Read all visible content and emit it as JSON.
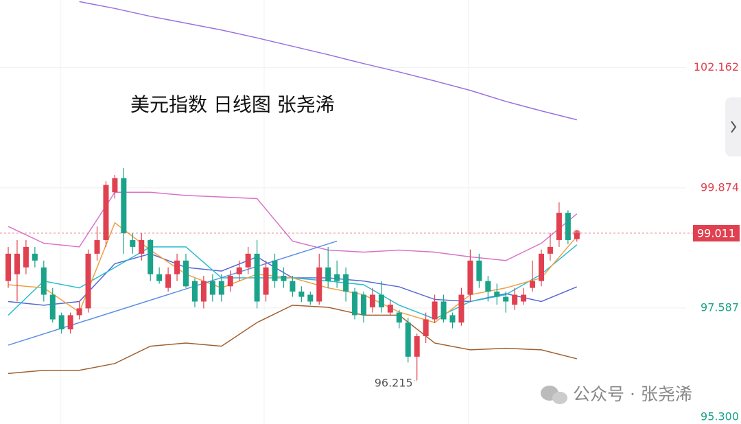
{
  "chart_data": {
    "type": "candlestick",
    "title": "美元指数 日线图  张尧浠",
    "watermark": "公众号 · 张尧浠",
    "up_color": "#e0404f",
    "down_color": "#1aa38a",
    "ylim": [
      95.3,
      103.451
    ],
    "yticks": [
      102.162,
      99.874,
      97.587,
      {
        "value": 95.3,
        "label": "95.300"
      }
    ],
    "ytick_colors": [
      "#e0404f",
      "#e0404f",
      "#1aa38a",
      "#1aa38a"
    ],
    "grid": true,
    "open": [
      98.1,
      98.23,
      98.36,
      98.62,
      98.36,
      97.84,
      97.45,
      97.18,
      97.45,
      97.58,
      98.62,
      98.88,
      99.79,
      100.06,
      98.88,
      98.62,
      98.88,
      98.23,
      97.97,
      98.23,
      98.49,
      98.1,
      97.71,
      98.1,
      98.1,
      98.0,
      98.23,
      98.36,
      98.62,
      97.84,
      98.49,
      98.2,
      98.1,
      97.9,
      97.84,
      97.71,
      98.36,
      98.23,
      98.23,
      97.9,
      97.84,
      97.6,
      97.84,
      97.5,
      97.5,
      97.31,
      96.66,
      97.05,
      97.37,
      97.71,
      97.45,
      97.31,
      97.84,
      98.49,
      98.1,
      97.9,
      97.8,
      97.65,
      97.71,
      97.97,
      98.1,
      98.62,
      98.88,
      99.4,
      98.9
    ],
    "high": [
      98.75,
      98.88,
      98.88,
      98.75,
      98.49,
      97.97,
      97.5,
      97.5,
      97.71,
      98.7,
      99.14,
      100.0,
      100.12,
      100.25,
      99.01,
      99.01,
      98.9,
      98.36,
      98.36,
      98.62,
      98.62,
      98.15,
      98.2,
      98.23,
      98.23,
      98.3,
      98.49,
      98.75,
      98.88,
      98.49,
      98.62,
      98.36,
      98.2,
      98.0,
      97.9,
      98.62,
      98.75,
      98.49,
      98.36,
      97.97,
      97.9,
      97.97,
      98.1,
      97.75,
      97.55,
      97.4,
      97.1,
      97.5,
      97.84,
      97.84,
      97.5,
      97.97,
      98.7,
      98.62,
      98.2,
      98.05,
      97.9,
      97.97,
      97.97,
      98.49,
      98.7,
      99.01,
      99.6,
      99.45,
      99.05
    ],
    "low": [
      97.97,
      97.71,
      98.23,
      98.36,
      97.71,
      97.31,
      97.1,
      97.1,
      97.37,
      97.5,
      98.49,
      98.75,
      99.67,
      98.62,
      98.62,
      98.49,
      98.1,
      98.05,
      97.9,
      98.1,
      97.97,
      97.6,
      97.58,
      97.71,
      97.71,
      97.9,
      98.1,
      98.23,
      97.58,
      97.71,
      97.97,
      97.97,
      97.8,
      97.7,
      97.65,
      97.65,
      97.97,
      97.97,
      97.71,
      97.37,
      97.31,
      97.5,
      97.5,
      97.45,
      97.2,
      96.55,
      96.215,
      96.92,
      97.3,
      97.31,
      97.2,
      97.25,
      97.7,
      97.97,
      97.71,
      97.65,
      97.5,
      97.55,
      97.65,
      97.9,
      98.0,
      98.49,
      98.75,
      98.8,
      98.85
    ],
    "close": [
      98.62,
      98.62,
      98.75,
      98.49,
      97.84,
      97.37,
      97.18,
      97.45,
      97.58,
      98.62,
      98.88,
      99.93,
      100.06,
      99.01,
      98.75,
      98.88,
      98.23,
      98.1,
      98.23,
      98.49,
      98.0,
      97.71,
      98.1,
      97.84,
      97.84,
      98.2,
      98.36,
      98.62,
      97.71,
      98.36,
      98.1,
      98.1,
      97.9,
      97.8,
      97.71,
      98.36,
      98.1,
      98.1,
      97.9,
      97.45,
      97.45,
      97.84,
      97.6,
      97.65,
      97.31,
      96.66,
      97.05,
      97.37,
      97.71,
      97.37,
      97.31,
      97.84,
      98.49,
      98.1,
      97.9,
      97.8,
      97.71,
      97.84,
      97.84,
      98.1,
      98.62,
      98.75,
      99.4,
      98.88,
      99.011
    ],
    "series": [
      {
        "color": "#9b6fe0",
        "x": [
          8,
          12,
          16,
          20,
          24,
          28,
          32,
          36,
          40,
          44,
          48,
          52,
          56,
          60,
          64
        ],
        "values": [
          103.42,
          103.29,
          103.14,
          103.01,
          102.88,
          102.73,
          102.57,
          102.41,
          102.24,
          102.08,
          101.91,
          101.73,
          101.52,
          101.34,
          101.17
        ]
      },
      {
        "color": "#d972c9",
        "x": [
          0,
          4,
          8,
          12,
          16,
          20,
          24,
          28,
          32,
          36,
          40,
          44,
          48,
          52,
          56,
          60,
          64
        ],
        "values": [
          99.14,
          98.82,
          98.75,
          99.79,
          99.79,
          99.73,
          99.7,
          99.67,
          98.86,
          98.69,
          98.65,
          98.69,
          98.65,
          98.56,
          98.49,
          98.82,
          99.38
        ]
      },
      {
        "color": "#a0602e",
        "x": [
          0,
          4,
          8,
          12,
          16,
          20,
          24,
          28,
          32,
          36,
          40,
          44,
          48,
          52,
          56,
          60,
          64
        ],
        "values": [
          96.34,
          96.4,
          96.4,
          96.53,
          96.86,
          96.92,
          96.86,
          97.31,
          97.64,
          97.6,
          97.45,
          97.45,
          96.92,
          96.79,
          96.82,
          96.79,
          96.62
        ]
      },
      {
        "color": "#5468d8",
        "x": [
          0,
          4,
          8,
          12,
          16,
          20,
          24,
          28,
          32,
          36,
          40,
          44,
          48,
          52,
          56,
          60,
          64
        ],
        "values": [
          97.71,
          97.64,
          97.71,
          98.43,
          98.62,
          98.36,
          98.29,
          98.56,
          98.16,
          98.16,
          98.1,
          97.99,
          97.75,
          97.71,
          97.86,
          97.71,
          97.99
        ]
      },
      {
        "color": "#27bcd0",
        "x": [
          0,
          4,
          8,
          12,
          16,
          20,
          24,
          28,
          32,
          36,
          40,
          44,
          48,
          52,
          56,
          60,
          64
        ],
        "values": [
          97.45,
          98.1,
          97.97,
          98.36,
          98.75,
          98.75,
          98.16,
          98.16,
          98.16,
          98.1,
          98.03,
          97.64,
          97.38,
          97.71,
          97.84,
          98.23,
          98.79
        ]
      },
      {
        "color": "#f0a040",
        "x": [
          0,
          4,
          8,
          12,
          16,
          20,
          24,
          28,
          32,
          36,
          40,
          44,
          48,
          52,
          56,
          60,
          64
        ],
        "values": [
          98.03,
          97.97,
          97.51,
          99.21,
          98.69,
          98.23,
          97.97,
          98.23,
          98.16,
          97.97,
          97.84,
          97.51,
          97.31,
          97.84,
          97.97,
          98.16,
          98.95
        ]
      },
      {
        "color": "#5b8ee6",
        "x": [
          0,
          37
        ],
        "values": [
          96.88,
          98.86
        ]
      }
    ]
  }
}
